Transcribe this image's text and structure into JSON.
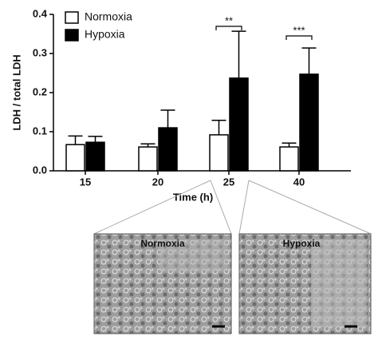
{
  "chart_data": {
    "type": "bar",
    "y_label": "LDH / total LDH",
    "x_label": "Time (h)",
    "categories": [
      "15",
      "20",
      "25",
      "40"
    ],
    "series": [
      {
        "name": "Normoxia",
        "color": "#ffffff",
        "values": [
          0.067,
          0.061,
          0.092,
          0.061
        ],
        "errors": [
          0.022,
          0.008,
          0.037,
          0.01
        ]
      },
      {
        "name": "Hypoxia",
        "color": "#000000",
        "values": [
          0.073,
          0.11,
          0.237,
          0.247
        ],
        "errors": [
          0.015,
          0.045,
          0.12,
          0.067
        ]
      }
    ],
    "ylim": [
      0,
      0.4
    ],
    "yticks": [
      {
        "value": 0,
        "label": "0.0"
      },
      0.1,
      0.2,
      0.3,
      0.4
    ],
    "annotations": [
      "**",
      "***"
    ],
    "legend": "top-left"
  },
  "micrographs": [
    "Normoxia",
    "Hypoxia"
  ]
}
